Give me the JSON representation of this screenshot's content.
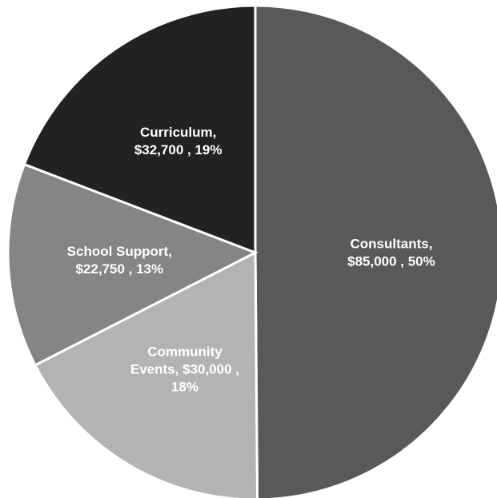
{
  "chart_data": {
    "type": "pie",
    "title": "",
    "slices": [
      {
        "name": "Consultants",
        "value": 85000,
        "percent": 50,
        "color": "#595959",
        "label_lines": [
          "Consultants,",
          "$85,000 , 50%"
        ]
      },
      {
        "name": "Community Events",
        "value": 30000,
        "percent": 18,
        "color": "#b3b3b3",
        "label_lines": [
          "Community",
          "Events, $30,000 ,",
          "18%"
        ]
      },
      {
        "name": "School Support",
        "value": 22750,
        "percent": 13,
        "color": "#858585",
        "label_lines": [
          "School Support,",
          "$22,750 , 13%"
        ]
      },
      {
        "name": "Curriculum",
        "value": 32700,
        "percent": 19,
        "color": "#222222",
        "label_lines": [
          "Curriculum,",
          "$32,700 , 19%"
        ]
      }
    ],
    "legend": "none"
  }
}
